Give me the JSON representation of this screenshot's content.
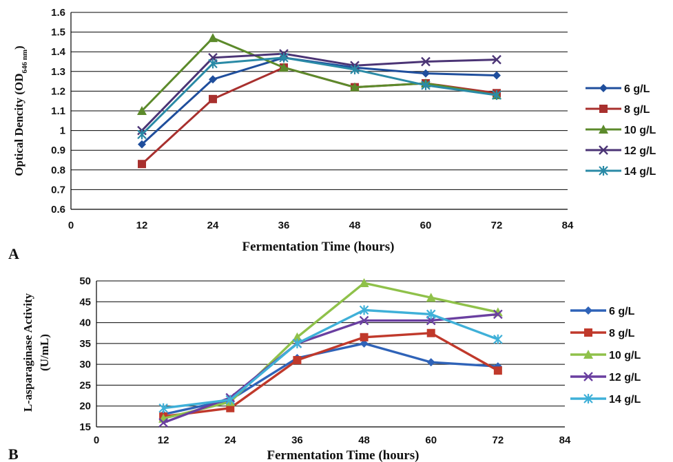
{
  "chart_data": [
    {
      "panel_label": "A",
      "type": "line",
      "xlabel": "Fermentation Time (hours)",
      "ylabel_main": "Optical Dencity (OD",
      "ylabel_sub": "646 nm",
      "ylabel_end": ")",
      "xlim": [
        0,
        84
      ],
      "ylim": [
        0.6,
        1.6
      ],
      "xticks": [
        "0",
        "12",
        "24",
        "36",
        "48",
        "60",
        "72",
        "84"
      ],
      "yticks": [
        "0.6",
        "0.7",
        "0.8",
        "0.9",
        "1",
        "1.1",
        "1.2",
        "1.3",
        "1.4",
        "1.5",
        "1.6"
      ],
      "grid": "horizontal",
      "legend_position": "right",
      "x": [
        12,
        24,
        36,
        48,
        60,
        72
      ],
      "series": [
        {
          "name": "6 g/L",
          "color": "#1f4e9c",
          "marker": "diamond",
          "values": [
            0.93,
            1.26,
            1.37,
            1.32,
            1.29,
            1.28
          ]
        },
        {
          "name": "8 g/L",
          "color": "#a8302e",
          "marker": "square",
          "values": [
            0.83,
            1.16,
            1.32,
            1.22,
            1.24,
            1.19
          ]
        },
        {
          "name": "10 g/L",
          "color": "#5c8a2b",
          "marker": "triangle",
          "values": [
            1.1,
            1.47,
            1.32,
            1.22,
            1.24,
            1.18
          ]
        },
        {
          "name": "12 g/L",
          "color": "#4b3475",
          "marker": "x",
          "values": [
            1.0,
            1.37,
            1.39,
            1.33,
            1.35,
            1.36
          ]
        },
        {
          "name": "14 g/L",
          "color": "#2a8aa6",
          "marker": "star",
          "values": [
            0.98,
            1.34,
            1.37,
            1.31,
            1.23,
            1.18
          ]
        }
      ]
    },
    {
      "panel_label": "B",
      "type": "line",
      "xlabel": "Fermentation Time  (hours)",
      "ylabel_line1": "L-asparaginase Activity",
      "ylabel_line2": "(U/mL)",
      "xlim": [
        0,
        84
      ],
      "ylim": [
        15,
        50
      ],
      "xticks": [
        "0",
        "12",
        "24",
        "36",
        "48",
        "60",
        "72",
        "84"
      ],
      "yticks": [
        "15",
        "20",
        "25",
        "30",
        "35",
        "40",
        "45",
        "50"
      ],
      "grid": "horizontal",
      "legend_position": "right",
      "x": [
        12,
        24,
        36,
        48,
        60,
        72
      ],
      "series": [
        {
          "name": "6 g/L",
          "color": "#2f63b8",
          "marker": "diamond",
          "values": [
            18.0,
            21.5,
            31.5,
            35.0,
            30.5,
            29.5
          ]
        },
        {
          "name": "8 g/L",
          "color": "#c0392b",
          "marker": "square",
          "values": [
            17.5,
            19.5,
            31.0,
            36.5,
            37.5,
            28.5
          ]
        },
        {
          "name": "10 g/L",
          "color": "#8fc14a",
          "marker": "triangle",
          "values": [
            17.0,
            21.0,
            36.5,
            49.5,
            46.0,
            42.5
          ]
        },
        {
          "name": "12 g/L",
          "color": "#6a3fa0",
          "marker": "x",
          "values": [
            16.0,
            22.0,
            35.0,
            40.5,
            40.5,
            42.0
          ]
        },
        {
          "name": "14 g/L",
          "color": "#3fb0d8",
          "marker": "star",
          "values": [
            19.5,
            21.5,
            35.0,
            43.0,
            42.0,
            36.0
          ]
        }
      ]
    }
  ]
}
